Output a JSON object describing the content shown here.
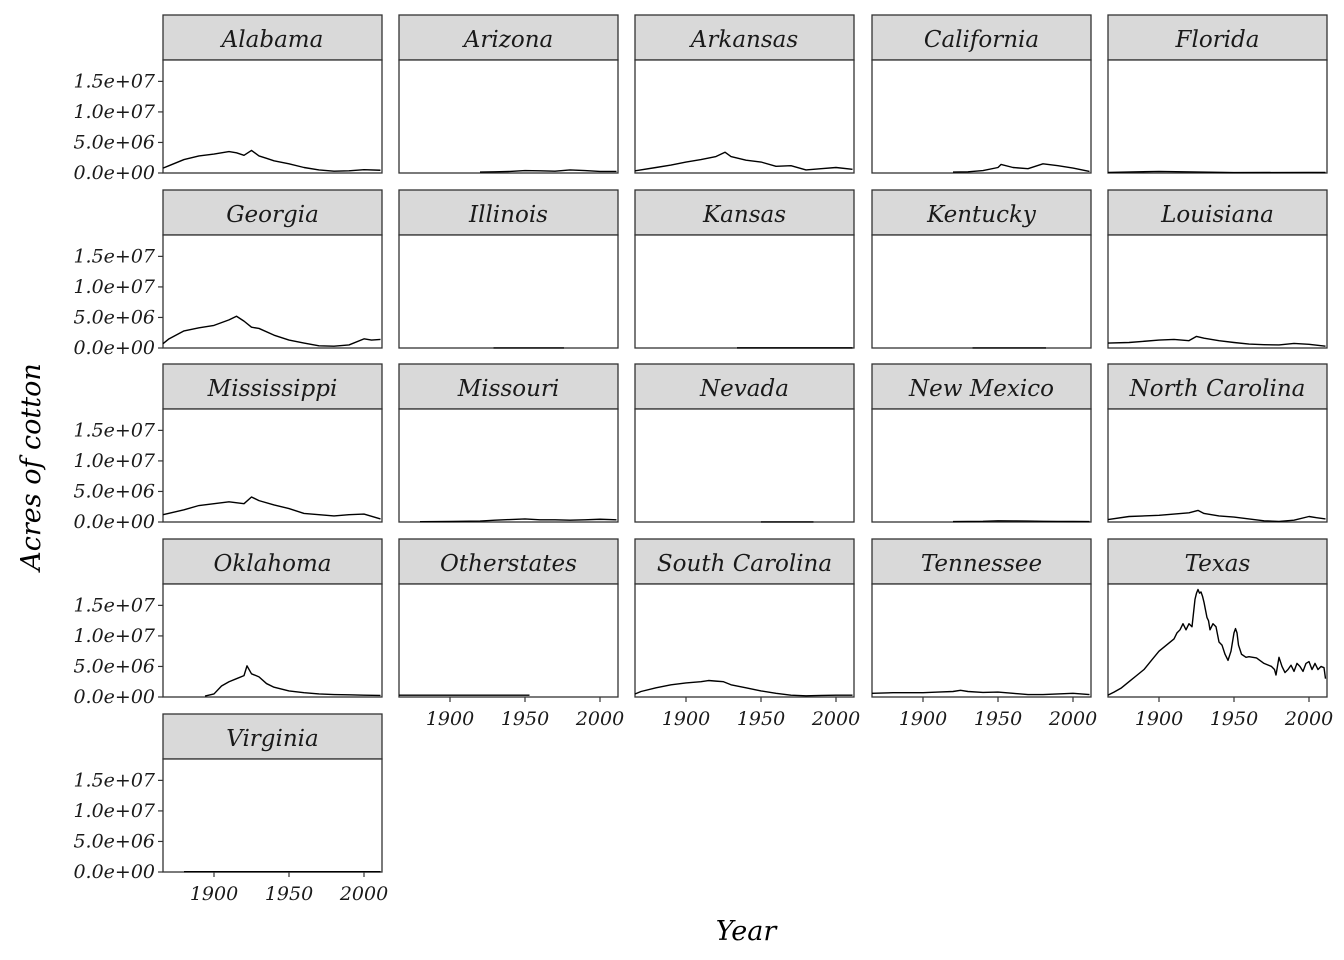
{
  "chart_data": {
    "type": "line",
    "facet": "wrap",
    "xlabel": "Year",
    "ylabel": "Acres of cotton",
    "xlim": [
      1866,
      2012
    ],
    "ylim": [
      0,
      18500000
    ],
    "x_ticks": [
      1900,
      1950,
      2000
    ],
    "x_tick_labels": [
      "1900",
      "1950",
      "2000"
    ],
    "y_ticks": [
      0,
      5000000,
      10000000,
      15000000
    ],
    "y_tick_labels": [
      "0.0e+00",
      "5.0e+06",
      "1.0e+07",
      "1.5e+07"
    ],
    "grid": false,
    "legend": "none",
    "strip_fill": "#d9d9d9",
    "line_color": "#000000",
    "panels": [
      {
        "state": "Alabama",
        "x": [
          1866,
          1870,
          1880,
          1890,
          1900,
          1905,
          1910,
          1915,
          1920,
          1925,
          1930,
          1935,
          1940,
          1950,
          1960,
          1970,
          1980,
          1990,
          2000,
          2011
        ],
        "y": [
          800000,
          1200000,
          2200000,
          2800000,
          3100000,
          3300000,
          3500000,
          3300000,
          2900000,
          3700000,
          2800000,
          2400000,
          2000000,
          1500000,
          900000,
          500000,
          300000,
          350000,
          550000,
          450000
        ]
      },
      {
        "state": "Arizona",
        "x": [
          1920,
          1930,
          1940,
          1950,
          1960,
          1970,
          1980,
          1990,
          2000,
          2011
        ],
        "y": [
          150000,
          200000,
          250000,
          400000,
          350000,
          300000,
          500000,
          400000,
          250000,
          250000
        ]
      },
      {
        "state": "Arkansas",
        "x": [
          1866,
          1880,
          1890,
          1900,
          1910,
          1920,
          1926,
          1930,
          1940,
          1950,
          1960,
          1970,
          1980,
          1990,
          2000,
          2011
        ],
        "y": [
          350000,
          900000,
          1300000,
          1800000,
          2200000,
          2700000,
          3400000,
          2700000,
          2100000,
          1800000,
          1100000,
          1200000,
          500000,
          700000,
          900000,
          600000
        ]
      },
      {
        "state": "California",
        "x": [
          1920,
          1930,
          1940,
          1950,
          1952,
          1960,
          1970,
          1980,
          1990,
          2000,
          2011
        ],
        "y": [
          150000,
          200000,
          400000,
          900000,
          1400000,
          900000,
          700000,
          1500000,
          1200000,
          800000,
          250000
        ]
      },
      {
        "state": "Florida",
        "x": [
          1866,
          1900,
          1950,
          2000,
          2011
        ],
        "y": [
          100000,
          250000,
          60000,
          100000,
          80000
        ]
      },
      {
        "state": "Georgia",
        "x": [
          1866,
          1870,
          1880,
          1890,
          1900,
          1910,
          1915,
          1920,
          1925,
          1930,
          1940,
          1950,
          1960,
          1970,
          1980,
          1990,
          2000,
          2005,
          2011
        ],
        "y": [
          700000,
          1500000,
          2800000,
          3300000,
          3700000,
          4600000,
          5200000,
          4400000,
          3400000,
          3200000,
          2100000,
          1300000,
          800000,
          350000,
          300000,
          500000,
          1500000,
          1300000,
          1400000
        ]
      },
      {
        "state": "Illinois",
        "x": [
          1929,
          1976
        ],
        "y": [
          10000,
          10000
        ]
      },
      {
        "state": "Kansas",
        "x": [
          1934,
          2011
        ],
        "y": [
          20000,
          20000
        ]
      },
      {
        "state": "Kentucky",
        "x": [
          1933,
          1982
        ],
        "y": [
          10000,
          10000
        ]
      },
      {
        "state": "Louisiana",
        "x": [
          1866,
          1880,
          1900,
          1910,
          1920,
          1925,
          1930,
          1940,
          1950,
          1960,
          1970,
          1980,
          1990,
          2000,
          2011
        ],
        "y": [
          800000,
          900000,
          1300000,
          1400000,
          1200000,
          1900000,
          1600000,
          1200000,
          900000,
          650000,
          550000,
          500000,
          750000,
          600000,
          300000
        ]
      },
      {
        "state": "Mississippi",
        "x": [
          1866,
          1880,
          1890,
          1900,
          1910,
          1920,
          1925,
          1930,
          1940,
          1950,
          1960,
          1970,
          1980,
          1990,
          2000,
          2011
        ],
        "y": [
          1200000,
          2000000,
          2700000,
          3000000,
          3300000,
          3000000,
          4100000,
          3500000,
          2800000,
          2200000,
          1400000,
          1200000,
          1000000,
          1200000,
          1300000,
          500000
        ]
      },
      {
        "state": "Missouri",
        "x": [
          1880,
          1900,
          1920,
          1930,
          1940,
          1950,
          1960,
          1970,
          1980,
          1990,
          2000,
          2011
        ],
        "y": [
          50000,
          80000,
          150000,
          300000,
          400000,
          500000,
          350000,
          350000,
          300000,
          350000,
          450000,
          350000
        ]
      },
      {
        "state": "Nevada",
        "x": [
          1950,
          1960,
          1970,
          1985
        ],
        "y": [
          10000,
          10000,
          10000,
          10000
        ]
      },
      {
        "state": "New Mexico",
        "x": [
          1920,
          1930,
          1940,
          1950,
          1960,
          1970,
          1980,
          1990,
          2000,
          2011
        ],
        "y": [
          60000,
          100000,
          120000,
          200000,
          180000,
          150000,
          120000,
          100000,
          80000,
          70000
        ]
      },
      {
        "state": "North Carolina",
        "x": [
          1866,
          1880,
          1900,
          1910,
          1920,
          1926,
          1930,
          1940,
          1950,
          1960,
          1970,
          1980,
          1990,
          2000,
          2005,
          2011
        ],
        "y": [
          400000,
          900000,
          1100000,
          1300000,
          1500000,
          1900000,
          1400000,
          1000000,
          800000,
          500000,
          200000,
          100000,
          300000,
          900000,
          700000,
          500000
        ]
      },
      {
        "state": "Oklahoma",
        "x": [
          1894,
          1900,
          1905,
          1910,
          1915,
          1920,
          1922,
          1925,
          1930,
          1935,
          1940,
          1950,
          1960,
          1970,
          1980,
          1990,
          2000,
          2011
        ],
        "y": [
          150000,
          500000,
          1800000,
          2500000,
          3000000,
          3500000,
          5100000,
          3800000,
          3300000,
          2200000,
          1600000,
          1000000,
          700000,
          500000,
          400000,
          350000,
          300000,
          250000
        ]
      },
      {
        "state": "Otherstates",
        "x": [
          1866,
          1900,
          1950,
          1953
        ],
        "y": [
          300000,
          300000,
          300000,
          300000
        ]
      },
      {
        "state": "South Carolina",
        "x": [
          1866,
          1870,
          1880,
          1890,
          1900,
          1910,
          1915,
          1920,
          1925,
          1930,
          1940,
          1950,
          1960,
          1970,
          1980,
          1990,
          2000,
          2011
        ],
        "y": [
          500000,
          900000,
          1500000,
          2000000,
          2300000,
          2500000,
          2700000,
          2600000,
          2500000,
          2000000,
          1500000,
          1000000,
          600000,
          300000,
          200000,
          250000,
          300000,
          300000
        ]
      },
      {
        "state": "Tennessee",
        "x": [
          1866,
          1880,
          1900,
          1910,
          1920,
          1925,
          1930,
          1940,
          1950,
          1960,
          1970,
          1980,
          1990,
          2000,
          2011
        ],
        "y": [
          600000,
          700000,
          700000,
          800000,
          900000,
          1100000,
          900000,
          750000,
          800000,
          600000,
          400000,
          400000,
          500000,
          600000,
          400000
        ]
      },
      {
        "state": "Texas",
        "x": [
          1866,
          1870,
          1875,
          1880,
          1885,
          1890,
          1895,
          1900,
          1905,
          1910,
          1912,
          1914,
          1916,
          1918,
          1920,
          1922,
          1924,
          1925,
          1926,
          1927,
          1928,
          1929,
          1930,
          1932,
          1933,
          1934,
          1936,
          1938,
          1940,
          1942,
          1944,
          1946,
          1948,
          1949,
          1950,
          1951,
          1952,
          1953,
          1955,
          1958,
          1960,
          1965,
          1970,
          1975,
          1977,
          1978,
          1980,
          1982,
          1984,
          1986,
          1988,
          1990,
          1992,
          1994,
          1996,
          1998,
          2000,
          2002,
          2004,
          2006,
          2008,
          2010,
          2011
        ],
        "y": [
          300000,
          800000,
          1500000,
          2500000,
          3500000,
          4500000,
          6000000,
          7500000,
          8500000,
          9500000,
          10500000,
          11000000,
          12000000,
          11000000,
          12000000,
          11500000,
          16000000,
          17000000,
          17600000,
          17000000,
          17200000,
          16500000,
          15500000,
          13000000,
          12500000,
          11000000,
          12000000,
          11500000,
          9000000,
          8500000,
          7000000,
          6000000,
          7500000,
          9000000,
          10500000,
          11200000,
          10500000,
          8500000,
          7000000,
          6500000,
          6600000,
          6400000,
          5500000,
          5000000,
          4500000,
          3600000,
          6500000,
          5000000,
          4000000,
          4500000,
          5200000,
          4200000,
          5500000,
          5000000,
          4200000,
          5500000,
          5800000,
          4500000,
          5500000,
          4500000,
          5000000,
          4800000,
          3000000
        ]
      },
      {
        "state": "Virginia",
        "x": [
          1880,
          1900,
          1950,
          2000,
          2011
        ],
        "y": [
          40000,
          40000,
          40000,
          40000,
          40000
        ]
      }
    ]
  }
}
